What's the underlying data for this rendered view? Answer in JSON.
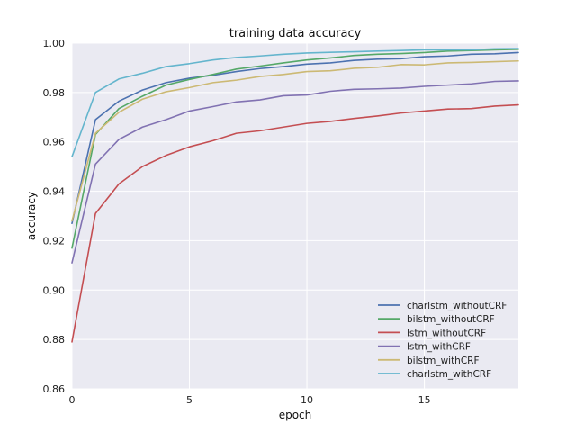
{
  "chart_data": {
    "type": "line",
    "title": "training data accuracy",
    "xlabel": "epoch",
    "ylabel": "accuracy",
    "xlim": [
      0,
      19
    ],
    "ylim": [
      0.86,
      1.0
    ],
    "xticks": [
      0,
      5,
      10,
      15
    ],
    "yticks": [
      0.86,
      0.88,
      0.9,
      0.92,
      0.94,
      0.96,
      0.98,
      1.0
    ],
    "xtick_labels": [
      "0",
      "5",
      "10",
      "15"
    ],
    "ytick_labels": [
      "0.86",
      "0.88",
      "0.90",
      "0.92",
      "0.94",
      "0.96",
      "0.98",
      "1.00"
    ],
    "grid": true,
    "legend_position": "lower-right",
    "x": [
      0,
      1,
      2,
      3,
      4,
      5,
      6,
      7,
      8,
      9,
      10,
      11,
      12,
      13,
      14,
      15,
      16,
      17,
      18,
      19
    ],
    "series": [
      {
        "name": "charlstm_withoutCRF",
        "color": "#4c72b0",
        "values": [
          0.927,
          0.969,
          0.9765,
          0.981,
          0.984,
          0.9858,
          0.987,
          0.9885,
          0.9897,
          0.9905,
          0.9915,
          0.992,
          0.993,
          0.9935,
          0.9937,
          0.9945,
          0.9948,
          0.9955,
          0.9957,
          0.9962
        ]
      },
      {
        "name": "bilstm_withoutCRF",
        "color": "#55a868",
        "values": [
          0.917,
          0.963,
          0.9735,
          0.9785,
          0.983,
          0.9853,
          0.9873,
          0.9895,
          0.9907,
          0.992,
          0.9932,
          0.994,
          0.995,
          0.9955,
          0.9958,
          0.9962,
          0.9968,
          0.997,
          0.9973,
          0.9975
        ]
      },
      {
        "name": "lstm_withoutCRF",
        "color": "#c44e52",
        "values": [
          0.879,
          0.931,
          0.943,
          0.95,
          0.9545,
          0.958,
          0.9605,
          0.9635,
          0.9645,
          0.966,
          0.9675,
          0.9683,
          0.9695,
          0.9705,
          0.9717,
          0.9725,
          0.9733,
          0.9735,
          0.9745,
          0.975
        ]
      },
      {
        "name": "lstm_withCRF",
        "color": "#8172b2",
        "values": [
          0.911,
          0.951,
          0.961,
          0.966,
          0.969,
          0.9725,
          0.9743,
          0.9762,
          0.977,
          0.9787,
          0.979,
          0.9805,
          0.9813,
          0.9815,
          0.9818,
          0.9825,
          0.983,
          0.9835,
          0.9845,
          0.9847
        ]
      },
      {
        "name": "bilstm_withCRF",
        "color": "#ccb974",
        "values": [
          0.928,
          0.9635,
          0.972,
          0.9773,
          0.9803,
          0.982,
          0.984,
          0.985,
          0.9865,
          0.9873,
          0.9885,
          0.9888,
          0.9898,
          0.9902,
          0.9913,
          0.9912,
          0.992,
          0.9922,
          0.9925,
          0.9928
        ]
      },
      {
        "name": "charlstm_withCRF",
        "color": "#64b5cd",
        "values": [
          0.954,
          0.98,
          0.9855,
          0.9878,
          0.9905,
          0.9917,
          0.9932,
          0.9942,
          0.9948,
          0.9955,
          0.996,
          0.9963,
          0.9965,
          0.9968,
          0.997,
          0.9973,
          0.9973,
          0.9973,
          0.9977,
          0.9978
        ]
      }
    ]
  },
  "style": {
    "plot_background": "#eaeaf2",
    "grid_color": "#ffffff"
  }
}
